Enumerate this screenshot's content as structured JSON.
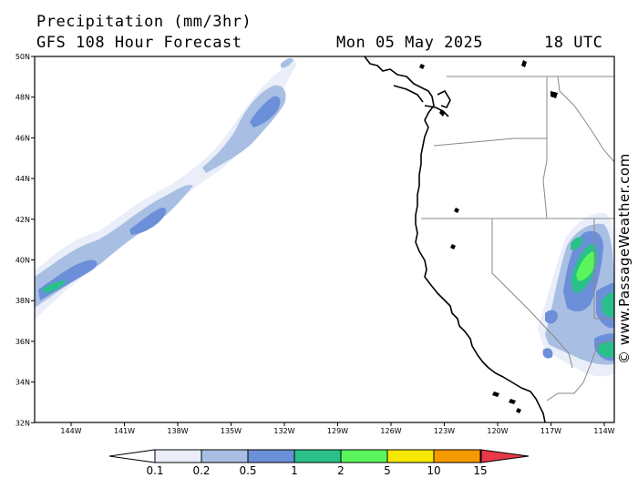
{
  "header": {
    "title": "Precipitation (mm/3hr)",
    "subtitle": "GFS 108 Hour Forecast",
    "date": "Mon 05 May 2025",
    "time": "18 UTC"
  },
  "credit": "© www.PassageWeather.com",
  "map": {
    "lat_labels": [
      "50N",
      "48N",
      "46N",
      "44N",
      "42N",
      "40N",
      "38N",
      "36N",
      "34N",
      "32N"
    ],
    "lon_labels": [
      "144W",
      "141W",
      "138W",
      "135W",
      "132W",
      "129W",
      "126W",
      "123W",
      "120W",
      "117W",
      "114W"
    ]
  },
  "legend": {
    "ticks": [
      "0.1",
      "0.2",
      "0.5",
      "1",
      "2",
      "5",
      "10",
      "15"
    ],
    "colors": [
      "#e9eef9",
      "#a8bfe3",
      "#6b8fd8",
      "#2bbf8a",
      "#5af55a",
      "#f5e800",
      "#f59a00",
      "#e8384a"
    ]
  }
}
